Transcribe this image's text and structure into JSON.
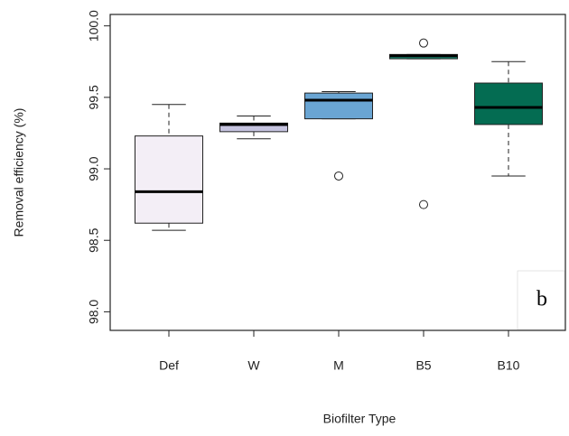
{
  "chart_data": {
    "type": "box",
    "x_label": "Biofilter Type",
    "y_label": "Removal efficiency (%)",
    "annotation": "b",
    "categories": [
      "Def",
      "W",
      "M",
      "B5",
      "B10"
    ],
    "boxes": [
      {
        "whislo": 98.57,
        "q1": 98.62,
        "med": 98.84,
        "q3": 99.23,
        "whishi": 99.45,
        "fliers": [],
        "color": "#f3eef6"
      },
      {
        "whislo": 99.21,
        "q1": 99.26,
        "med": 99.31,
        "q3": 99.32,
        "whishi": 99.37,
        "fliers": [],
        "color": "#c6c4e0"
      },
      {
        "whislo": 99.35,
        "q1": 99.35,
        "med": 99.48,
        "q3": 99.53,
        "whishi": 99.54,
        "fliers": [
          98.95
        ],
        "color": "#6aa5d3"
      },
      {
        "whislo": 99.77,
        "q1": 99.77,
        "med": 99.79,
        "q3": 99.8,
        "whishi": 99.8,
        "fliers": [
          99.88,
          98.75
        ],
        "color": "#1c9078"
      },
      {
        "whislo": 98.95,
        "q1": 99.31,
        "med": 99.43,
        "q3": 99.6,
        "whishi": 99.75,
        "fliers": [],
        "color": "#046c52"
      }
    ],
    "ylim": [
      97.87,
      100.08
    ],
    "yticks": [
      {
        "value": 98,
        "label": "98.0"
      },
      {
        "value": 98.5,
        "label": "98.5"
      },
      {
        "value": 99,
        "label": "99.0"
      },
      {
        "value": 99.5,
        "label": "99.5"
      },
      {
        "value": 100,
        "label": "100.0"
      }
    ]
  }
}
